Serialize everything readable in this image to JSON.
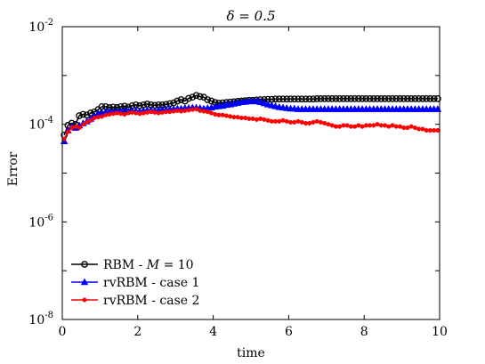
{
  "chart_data": {
    "type": "line",
    "title": "δ = 0.5",
    "xlabel": "time",
    "ylabel": "Error",
    "xlim": [
      0,
      10
    ],
    "ylim_log10": [
      -8,
      -2
    ],
    "yscale": "log",
    "grid": false,
    "legend_position": "bottom-left",
    "x_ticks": [
      "0",
      "2",
      "4",
      "6",
      "8",
      "10"
    ],
    "y_ticks": [
      {
        "base": "10",
        "exp": "-2"
      },
      {
        "base": "10",
        "exp": "-4"
      },
      {
        "base": "10",
        "exp": "-6"
      },
      {
        "base": "10",
        "exp": "-8"
      }
    ],
    "series": [
      {
        "name": "RBM - M = 10",
        "legend": {
          "prefix": "RBM - ",
          "var": "M",
          "suffix": " = 10"
        },
        "color": "#000000",
        "marker": "circle",
        "x": [
          0.05,
          0.15,
          0.25,
          0.35,
          0.45,
          0.55,
          0.65,
          0.75,
          0.85,
          0.95,
          1.05,
          1.15,
          1.25,
          1.35,
          1.45,
          1.55,
          1.65,
          1.75,
          1.85,
          1.95,
          2.05,
          2.15,
          2.25,
          2.35,
          2.45,
          2.55,
          2.65,
          2.75,
          2.85,
          2.95,
          3.05,
          3.15,
          3.25,
          3.35,
          3.45,
          3.55,
          3.65,
          3.75,
          3.85,
          3.95,
          4.05,
          4.15,
          4.25,
          4.35,
          4.45,
          4.55,
          4.65,
          4.75,
          4.85,
          4.95,
          5.05,
          5.15,
          5.25,
          5.35,
          5.45,
          5.55,
          5.65,
          5.75,
          5.85,
          5.95,
          6.05,
          6.15,
          6.25,
          6.35,
          6.45,
          6.55,
          6.65,
          6.75,
          6.85,
          6.95,
          7.05,
          7.15,
          7.25,
          7.35,
          7.45,
          7.55,
          7.65,
          7.75,
          7.85,
          7.95,
          8.05,
          8.15,
          8.25,
          8.35,
          8.45,
          8.55,
          8.65,
          8.75,
          8.85,
          8.95,
          9.05,
          9.15,
          9.25,
          9.35,
          9.45,
          9.55,
          9.65,
          9.75,
          9.85,
          9.95
        ],
        "y": [
          6e-05,
          9.5e-05,
          0.000105,
          0.0001,
          0.00015,
          0.00016,
          0.000155,
          0.00017,
          0.00018,
          0.0002,
          0.00023,
          0.00023,
          0.00022,
          0.000225,
          0.00022,
          0.00023,
          0.000235,
          0.000225,
          0.00024,
          0.00025,
          0.00024,
          0.00025,
          0.00026,
          0.00025,
          0.000245,
          0.00025,
          0.00025,
          0.000255,
          0.000265,
          0.000275,
          0.0003,
          0.00032,
          0.0003,
          0.00034,
          0.00036,
          0.00039,
          0.00037,
          0.00036,
          0.00032,
          0.0003,
          0.00028,
          0.00027,
          0.000275,
          0.00028,
          0.000285,
          0.00029,
          0.000295,
          0.0003,
          0.000305,
          0.00031,
          0.00031,
          0.000315,
          0.00032,
          0.00032,
          0.000325,
          0.000325,
          0.00033,
          0.00033,
          0.00033,
          0.00033,
          0.00033,
          0.00033,
          0.00033,
          0.00033,
          0.00033,
          0.00033,
          0.00033,
          0.000335,
          0.000335,
          0.000335,
          0.000335,
          0.000335,
          0.000335,
          0.000335,
          0.000335,
          0.000335,
          0.000335,
          0.000335,
          0.000335,
          0.000335,
          0.000335,
          0.000335,
          0.000335,
          0.000335,
          0.000335,
          0.000335,
          0.000335,
          0.000335,
          0.000335,
          0.000335,
          0.000335,
          0.000335,
          0.000335,
          0.000335,
          0.000335,
          0.000335,
          0.000335,
          0.000335,
          0.000335,
          0.000335
        ]
      },
      {
        "name": "rvRBM - case 1",
        "color": "#0000ff",
        "marker": "triangle",
        "x": [
          0.05,
          0.15,
          0.25,
          0.35,
          0.45,
          0.55,
          0.65,
          0.75,
          0.85,
          0.95,
          1.05,
          1.15,
          1.25,
          1.35,
          1.45,
          1.55,
          1.65,
          1.75,
          1.85,
          1.95,
          2.05,
          2.15,
          2.25,
          2.35,
          2.45,
          2.55,
          2.65,
          2.75,
          2.85,
          2.95,
          3.05,
          3.15,
          3.25,
          3.35,
          3.45,
          3.55,
          3.65,
          3.75,
          3.85,
          3.95,
          4.05,
          4.15,
          4.25,
          4.35,
          4.45,
          4.55,
          4.65,
          4.75,
          4.85,
          4.95,
          5.05,
          5.15,
          5.25,
          5.35,
          5.45,
          5.55,
          5.65,
          5.75,
          5.85,
          5.95,
          6.05,
          6.15,
          6.25,
          6.35,
          6.45,
          6.55,
          6.65,
          6.75,
          6.85,
          6.95,
          7.05,
          7.15,
          7.25,
          7.35,
          7.45,
          7.55,
          7.65,
          7.75,
          7.85,
          7.95,
          8.05,
          8.15,
          8.25,
          8.35,
          8.45,
          8.55,
          8.65,
          8.75,
          8.85,
          8.95,
          9.05,
          9.15,
          9.25,
          9.35,
          9.45,
          9.55,
          9.65,
          9.75,
          9.85,
          9.95
        ],
        "y": [
          4.5e-05,
          7.5e-05,
          9e-05,
          8.5e-05,
          9.5e-05,
          0.000105,
          0.000115,
          0.00013,
          0.00015,
          0.000165,
          0.00017,
          0.00018,
          0.00018,
          0.00018,
          0.000185,
          0.000185,
          0.00019,
          0.000185,
          0.00019,
          0.00019,
          0.000185,
          0.00019,
          0.000195,
          0.000195,
          0.00019,
          0.000195,
          0.0002,
          0.0002,
          0.000205,
          0.000205,
          0.00021,
          0.00021,
          0.000215,
          0.000215,
          0.00022,
          0.00022,
          0.000215,
          0.00021,
          0.000215,
          0.00022,
          0.00023,
          0.000235,
          0.00024,
          0.00025,
          0.000255,
          0.000265,
          0.000275,
          0.000285,
          0.00029,
          0.000295,
          0.0003,
          0.000295,
          0.000285,
          0.00027,
          0.000255,
          0.000245,
          0.000235,
          0.000225,
          0.00022,
          0.000215,
          0.00021,
          0.00021,
          0.000205,
          0.000205,
          0.000205,
          0.000205,
          0.000205,
          0.000205,
          0.000205,
          0.000205,
          0.000205,
          0.000205,
          0.000205,
          0.000205,
          0.000205,
          0.000205,
          0.000205,
          0.000205,
          0.000205,
          0.000205,
          0.000205,
          0.000205,
          0.000205,
          0.000205,
          0.000205,
          0.000205,
          0.000205,
          0.000205,
          0.000205,
          0.000205,
          0.000205,
          0.000205,
          0.000205,
          0.000205,
          0.000205,
          0.000205,
          0.000205,
          0.000205,
          0.000205,
          0.000205
        ]
      },
      {
        "name": "rvRBM - case 2",
        "color": "#ff0000",
        "marker": "dot",
        "x": [
          0.05,
          0.15,
          0.25,
          0.35,
          0.45,
          0.55,
          0.65,
          0.75,
          0.85,
          0.95,
          1.05,
          1.15,
          1.25,
          1.35,
          1.45,
          1.55,
          1.65,
          1.75,
          1.85,
          1.95,
          2.05,
          2.15,
          2.25,
          2.35,
          2.45,
          2.55,
          2.65,
          2.75,
          2.85,
          2.95,
          3.05,
          3.15,
          3.25,
          3.35,
          3.45,
          3.55,
          3.65,
          3.75,
          3.85,
          3.95,
          4.05,
          4.15,
          4.25,
          4.35,
          4.45,
          4.55,
          4.65,
          4.75,
          4.85,
          4.95,
          5.05,
          5.15,
          5.25,
          5.35,
          5.45,
          5.55,
          5.65,
          5.75,
          5.85,
          5.95,
          6.05,
          6.15,
          6.25,
          6.35,
          6.45,
          6.55,
          6.65,
          6.75,
          6.85,
          6.95,
          7.05,
          7.15,
          7.25,
          7.35,
          7.45,
          7.55,
          7.65,
          7.75,
          7.85,
          7.95,
          8.05,
          8.15,
          8.25,
          8.35,
          8.45,
          8.55,
          8.65,
          8.75,
          8.85,
          8.95,
          9.05,
          9.15,
          9.25,
          9.35,
          9.45,
          9.55,
          9.65,
          9.75,
          9.85,
          9.95
        ],
        "y": [
          5e-05,
          7e-05,
          8.5e-05,
          9e-05,
          8.5e-05,
          0.0001,
          0.00011,
          0.00012,
          0.000135,
          0.00014,
          0.000145,
          0.000155,
          0.00016,
          0.000165,
          0.00017,
          0.000165,
          0.00016,
          0.00017,
          0.000175,
          0.00017,
          0.000165,
          0.00017,
          0.000175,
          0.00018,
          0.000175,
          0.00017,
          0.000175,
          0.00018,
          0.00018,
          0.000185,
          0.00019,
          0.000185,
          0.00019,
          0.000195,
          0.0002,
          0.000205,
          0.00019,
          0.000185,
          0.00018,
          0.00017,
          0.00016,
          0.000155,
          0.000155,
          0.00015,
          0.000145,
          0.00014,
          0.00014,
          0.000135,
          0.000135,
          0.00013,
          0.00013,
          0.000125,
          0.00013,
          0.000125,
          0.00012,
          0.000115,
          0.000115,
          0.000115,
          0.00012,
          0.000115,
          0.00011,
          0.00011,
          0.000115,
          0.00011,
          0.000105,
          0.000105,
          0.00011,
          0.000115,
          0.00011,
          0.000105,
          0.0001,
          9.5e-05,
          9e-05,
          9e-05,
          9.5e-05,
          9.5e-05,
          9e-05,
          9e-05,
          9.5e-05,
          9e-05,
          9.5e-05,
          9.5e-05,
          9.5e-05,
          0.0001,
          9.5e-05,
          9.5e-05,
          9e-05,
          9.5e-05,
          9e-05,
          9e-05,
          8.5e-05,
          8.5e-05,
          9e-05,
          8.5e-05,
          8e-05,
          8e-05,
          7.5e-05,
          7.5e-05,
          7.5e-05,
          7.5e-05
        ]
      }
    ]
  }
}
